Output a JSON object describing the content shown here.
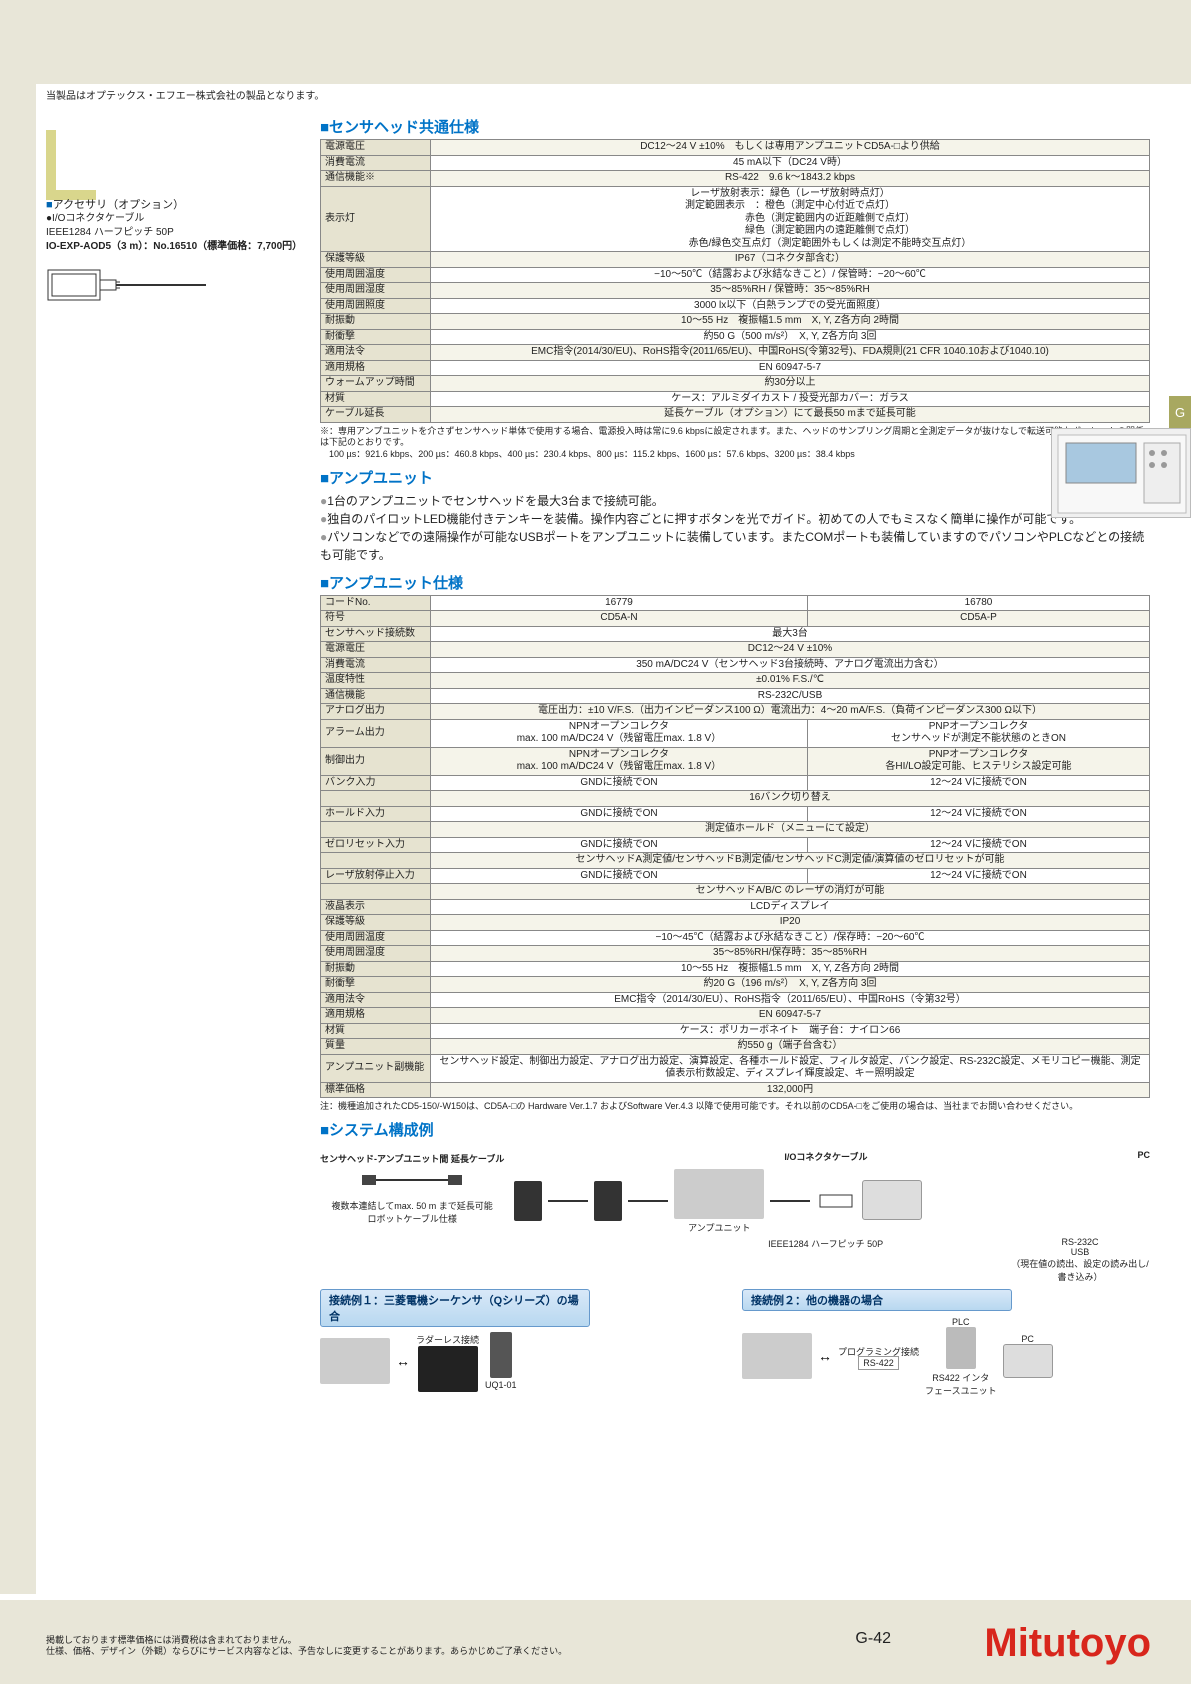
{
  "top_note": "当製品はオプテックス・エフエー株式会社の製品となります。",
  "left": {
    "accessory_heading": "アクセサリ（オプション）",
    "cable_heading": "I/Oコネクタケーブル",
    "cable_spec": "IEEE1284 ハーフピッチ 50P",
    "cable_model": "IO-EXP-AOD5（3 m）：No.16510（標準価格：7,700円）"
  },
  "sec1": {
    "title": "■センサヘッド共通仕様",
    "rows": [
      [
        "電源電圧",
        "DC12〜24 V ±10%　もしくは専用アンプユニットCD5A-□より供給"
      ],
      [
        "消費電流",
        "45 mA以下（DC24 V時）"
      ],
      [
        "通信機能※",
        "RS-422　9.6 k〜1843.2 kbps"
      ],
      [
        "表示灯",
        "レーザ放射表示：緑色（レーザ放射時点灯）\n測定範囲表示　：橙色（測定中心付近で点灯）\n　　　　　　　　赤色（測定範囲内の近距離側で点灯）\n　　　　　　　　緑色（測定範囲内の遠距離側で点灯）\n　　　　　　　　赤色/緑色交互点灯（測定範囲外もしくは測定不能時交互点灯）"
      ],
      [
        "保護等級",
        "IP67（コネクタ部含む）"
      ],
      [
        "使用周囲温度",
        "−10〜50℃（結露および氷結なきこと）/ 保管時：−20〜60℃"
      ],
      [
        "使用周囲湿度",
        "35〜85%RH / 保管時：35〜85%RH"
      ],
      [
        "使用周囲照度",
        "3000 lx以下（白熱ランプでの受光面照度）"
      ],
      [
        "耐振動",
        "10〜55 Hz　複振幅1.5 mm　X, Y, Z各方向 2時間"
      ],
      [
        "耐衝撃",
        "約50 G（500 m/s²）　X, Y, Z各方向 3回"
      ],
      [
        "適用法令",
        "EMC指令(2014/30/EU)、RoHS指令(2011/65/EU)、中国RoHS(令第32号)、FDA規則(21 CFR 1040.10および1040.10)"
      ],
      [
        "適用規格",
        "EN 60947-5-7"
      ],
      [
        "ウォームアップ時間",
        "約30分以上"
      ],
      [
        "材質",
        "ケース：アルミダイカスト / 投受光部カバー：ガラス"
      ],
      [
        "ケーブル延長",
        "延長ケーブル（オプション）にて最長50 mまで延長可能"
      ]
    ],
    "note": "※：専用アンプユニットを介さずセンサヘッド単体で使用する場合、電源投入時は常に9.6 kbpsに設定されます。また、ヘッドのサンプリング周期と全測定データが抜けなしで転送可能なボーレートの関係は下記のとおりです。\n　100 µs：921.6 kbps、200 µs：460.8 kbps、400 µs：230.4 kbps、800 µs：115.2 kbps、1600 µs：57.6 kbps、3200 µs：38.4 kbps"
  },
  "sec2": {
    "title": "■アンプユニット",
    "bullets": [
      "1台のアンプユニットでセンサヘッドを最大3台まで接続可能。",
      "独自のパイロットLED機能付きテンキーを装備。操作内容ごとに押すボタンを光でガイド。初めての人でもミスなく簡単に操作が可能です。",
      "パソコンなどでの遠隔操作が可能なUSBポートをアンプユニットに装備しています。またCOMポートも装備していますのでパソコンやPLCなどとの接続も可能です。"
    ]
  },
  "sec3": {
    "title": "■アンプユニット仕様",
    "header": [
      "コードNo.",
      "16779",
      "16780"
    ],
    "header2": [
      "符号",
      "CD5A-N",
      "CD5A-P"
    ],
    "rows": [
      [
        "センサヘッド接続数",
        "最大3台"
      ],
      [
        "電源電圧",
        "DC12〜24 V ±10%"
      ],
      [
        "消費電流",
        "350 mA/DC24 V（センサヘッド3台接続時、アナログ電流出力含む）"
      ],
      [
        "温度特性",
        "±0.01% F.S./℃"
      ],
      [
        "通信機能",
        "RS-232C/USB"
      ],
      [
        "アナログ出力",
        "電圧出力：±10 V/F.S.（出力インピーダンス100 Ω）電流出力：4〜20 mA/F.S.（負荷インピーダンス300 Ω以下）"
      ]
    ],
    "rows2": [
      [
        "アラーム出力",
        "NPNオープンコレクタ\nmax. 100 mA/DC24 V（残留電圧max. 1.8 V）",
        "PNPオープンコレクタ\nセンサヘッドが測定不能状態のときON"
      ],
      [
        "制御出力",
        "NPNオープンコレクタ\nmax. 100 mA/DC24 V（残留電圧max. 1.8 V）",
        "PNPオープンコレクタ\n各HI/LO設定可能、ヒステリシス設定可能"
      ],
      [
        "バンク入力",
        "GNDに接続でON",
        "12〜24 Vに接続でON"
      ],
      [
        "",
        "16バンク切り替え",
        ""
      ],
      [
        "ホールド入力",
        "GNDに接続でON",
        "12〜24 Vに接続でON"
      ],
      [
        "",
        "測定値ホールド（メニューにて設定）",
        ""
      ],
      [
        "ゼロリセット入力",
        "GNDに接続でON",
        "12〜24 Vに接続でON"
      ],
      [
        "",
        "センサヘッドA測定値/センサヘッドB測定値/センサヘッドC測定値/演算値のゼロリセットが可能",
        ""
      ],
      [
        "レーザ放射停止入力",
        "GNDに接続でON",
        "12〜24 Vに接続でON"
      ],
      [
        "",
        "センサヘッドA/B/C のレーザの消灯が可能",
        ""
      ]
    ],
    "rows3": [
      [
        "液晶表示",
        "LCDディスプレイ"
      ],
      [
        "保護等級",
        "IP20"
      ],
      [
        "使用周囲温度",
        "−10〜45℃（結露および氷結なきこと）/保存時：−20〜60℃"
      ],
      [
        "使用周囲湿度",
        "35〜85%RH/保存時：35〜85%RH"
      ],
      [
        "耐振動",
        "10〜55 Hz　複振幅1.5 mm　X, Y, Z各方向 2時間"
      ],
      [
        "耐衝撃",
        "約20 G（196 m/s²）　X, Y, Z各方向 3回"
      ],
      [
        "適用法令",
        "EMC指令（2014/30/EU）、RoHS指令（2011/65/EU）、中国RoHS（令第32号）"
      ],
      [
        "適用規格",
        "EN 60947-5-7"
      ],
      [
        "材質",
        "ケース：ポリカーボネイト　端子台：ナイロン66"
      ],
      [
        "質量",
        "約550 g（端子台含む）"
      ],
      [
        "アンプユニット副機能",
        "センサヘッド設定、制御出力設定、アナログ出力設定、演算設定、各種ホールド設定、フィルタ設定、バンク設定、RS-232C設定、メモリコピー機能、測定値表示桁数設定、ディスプレイ輝度設定、キー照明設定"
      ],
      [
        "標準価格",
        "132,000円"
      ]
    ],
    "note": "注：機種追加されたCD5-150/-W150は、CD5A-□の Hardware Ver.1.7 およびSoftware Ver.4.3 以降で使用可能です。それ以前のCD5A-□をご使用の場合は、当社までお問い合わせください。"
  },
  "sec4": {
    "title": "■システム構成例",
    "labels": {
      "ext_cable": "センサヘッド-アンプユニット間\n延長ケーブル",
      "robot": "複数本連結してmax. 50 m まで延長可能\nロボットケーブル仕様",
      "io": "I/Oコネクタケーブル",
      "pc": "PC",
      "amp": "アンプユニット",
      "ieee": "IEEE1284 ハーフピッチ 50P",
      "rs232": "RS-232C\nUSB\n（現在値の読出、設定の読み出し/書き込み）",
      "conn1": "接続例１：三菱電機シーケンサ（Qシリーズ）の場合",
      "conn2": "接続例２：他の機器の場合",
      "ladderless": "ラダーレス接続",
      "prog": "プログラミング接続",
      "uq": "UQ1-01",
      "rs422": "RS-422",
      "plc": "PLC",
      "pc2": "PC",
      "rs422if": "RS422 インタ\nフェースユニット"
    }
  },
  "side_tab": "G",
  "footer": {
    "text": "掲載しております標準価格には消費税は含まれておりません。\n仕様、価格、デザイン（外観）ならびにサービス内容などは、予告なしに変更することがあります。あらかじめご了承ください。",
    "page": "G-42",
    "logo": "Mitutoyo"
  },
  "colors": {
    "accent": "#0073c7",
    "bg": "#e8e6d8",
    "stripe": "#f5f4ea",
    "header": "#e6e3d0",
    "logo": "#d8261c"
  }
}
